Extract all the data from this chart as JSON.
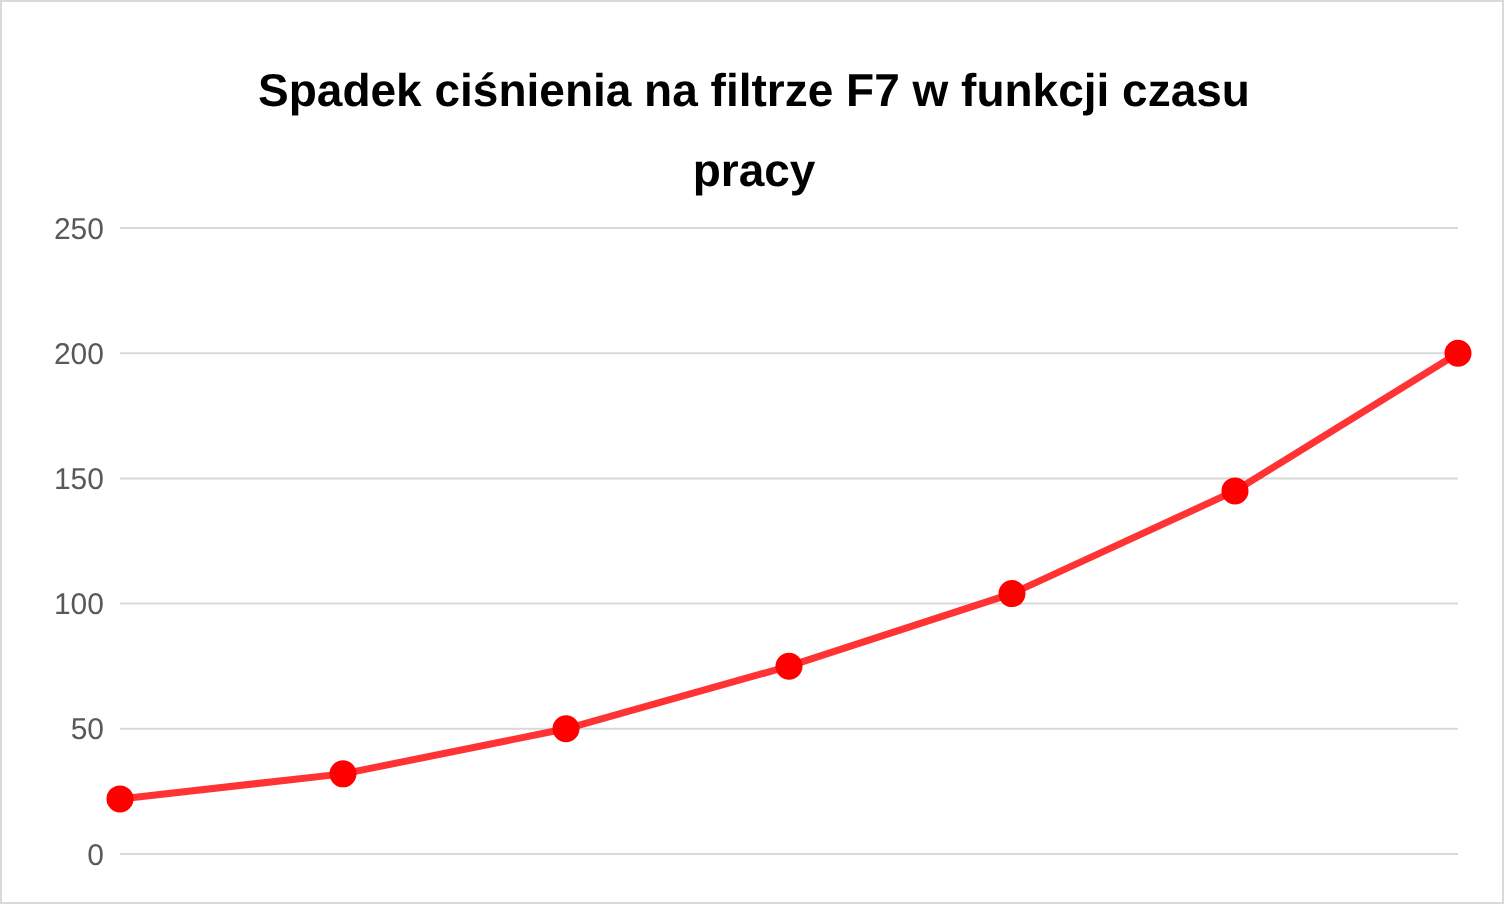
{
  "chart_data": {
    "type": "line",
    "title": "Spadek ciśnienia na filtrze F7 w funkcji czasu pracy",
    "categories": [
      null,
      null,
      null,
      null,
      null,
      null,
      null
    ],
    "series": [
      {
        "color": "#ff3333",
        "values": [
          22,
          32,
          50,
          75,
          104,
          145,
          200
        ]
      }
    ],
    "ylim": [
      0,
      250
    ],
    "yticks": [
      0,
      50,
      100,
      150,
      200,
      250
    ],
    "grid": "y",
    "legend": false,
    "marker": "circle",
    "line_style": "solid",
    "tick_labels": "y"
  }
}
